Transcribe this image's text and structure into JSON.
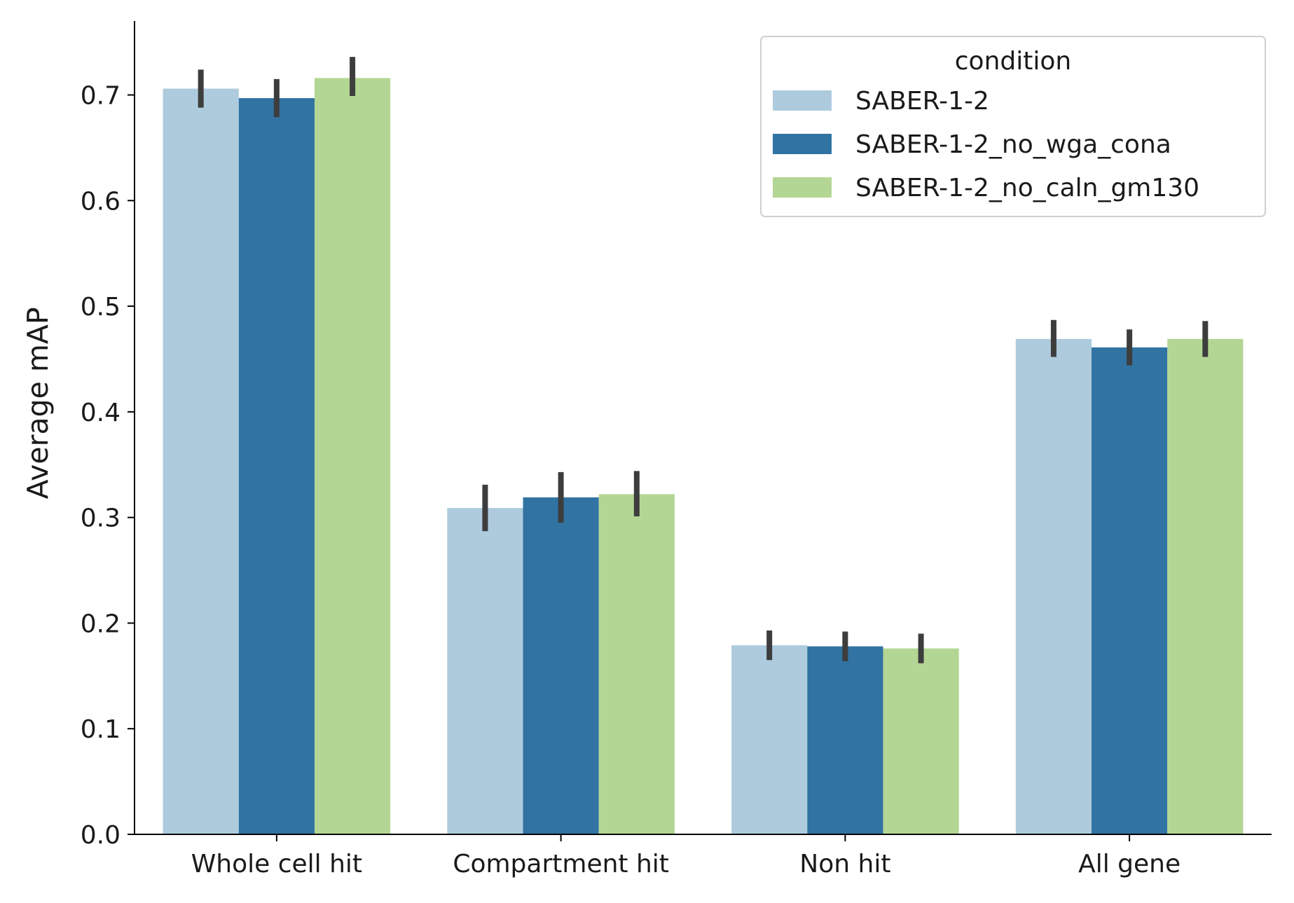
{
  "chart_data": {
    "type": "bar",
    "title": "",
    "xlabel": "",
    "ylabel": "Average mAP",
    "categories": [
      "Whole cell hit",
      "Compartment hit",
      "Non hit",
      "All gene"
    ],
    "ylim": [
      0.0,
      0.77
    ],
    "yticks": [
      0.0,
      0.1,
      0.2,
      0.3,
      0.4,
      0.5,
      0.6,
      0.7
    ],
    "ytick_labels": [
      "0.0",
      "0.1",
      "0.2",
      "0.3",
      "0.4",
      "0.5",
      "0.6",
      "0.7"
    ],
    "grid": false,
    "error_bars": true,
    "legend": {
      "title": "condition",
      "placement": "top-right"
    },
    "series": [
      {
        "name": "SABER-1-2",
        "color": "#aecbde",
        "values": [
          0.706,
          0.309,
          0.179,
          0.469
        ],
        "err_low": [
          0.688,
          0.287,
          0.165,
          0.452
        ],
        "err_high": [
          0.724,
          0.331,
          0.193,
          0.487
        ]
      },
      {
        "name": "SABER-1-2_no_wga_cona",
        "color": "#3173a2",
        "values": [
          0.697,
          0.319,
          0.178,
          0.461
        ],
        "err_low": [
          0.679,
          0.295,
          0.164,
          0.444
        ],
        "err_high": [
          0.715,
          0.343,
          0.192,
          0.478
        ]
      },
      {
        "name": "SABER-1-2_no_caln_gm130",
        "color": "#b4d694",
        "values": [
          0.716,
          0.322,
          0.176,
          0.469
        ],
        "err_low": [
          0.699,
          0.301,
          0.162,
          0.452
        ],
        "err_high": [
          0.736,
          0.344,
          0.19,
          0.486
        ]
      }
    ],
    "error_bar_color": "#3d3d3d"
  }
}
